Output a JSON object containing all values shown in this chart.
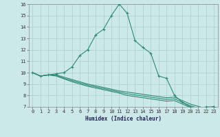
{
  "xlabel": "Humidex (Indice chaleur)",
  "x": [
    0,
    1,
    2,
    3,
    4,
    5,
    6,
    7,
    8,
    9,
    10,
    11,
    12,
    13,
    14,
    15,
    16,
    17,
    18,
    19,
    20,
    21,
    22,
    23
  ],
  "y_main": [
    10.0,
    9.7,
    9.8,
    9.9,
    10.0,
    10.5,
    11.5,
    12.0,
    13.3,
    13.8,
    15.0,
    16.0,
    15.2,
    12.8,
    12.2,
    11.7,
    9.7,
    9.5,
    8.0,
    7.4,
    7.0,
    6.8,
    7.0,
    7.0
  ],
  "y_low1": [
    10.0,
    9.7,
    9.8,
    9.8,
    9.6,
    9.4,
    9.2,
    9.0,
    8.85,
    8.7,
    8.55,
    8.4,
    8.3,
    8.2,
    8.1,
    8.0,
    7.9,
    7.8,
    7.85,
    7.55,
    7.25,
    7.05,
    6.85,
    7.05
  ],
  "y_low2": [
    10.0,
    9.7,
    9.8,
    9.75,
    9.5,
    9.3,
    9.1,
    8.9,
    8.75,
    8.6,
    8.45,
    8.3,
    8.15,
    8.05,
    7.95,
    7.85,
    7.75,
    7.65,
    7.7,
    7.4,
    7.1,
    6.9,
    6.7,
    6.9
  ],
  "y_low3": [
    10.0,
    9.7,
    9.8,
    9.7,
    9.45,
    9.2,
    9.0,
    8.8,
    8.65,
    8.5,
    8.35,
    8.2,
    8.0,
    7.9,
    7.8,
    7.7,
    7.6,
    7.5,
    7.55,
    7.25,
    6.95,
    6.75,
    6.55,
    6.75
  ],
  "line_color": "#2d8b72",
  "bg_color": "#cce8e8",
  "grid_color": "#aacece",
  "ylim": [
    7,
    16
  ],
  "xlim": [
    -0.5,
    23.5
  ],
  "yticks": [
    7,
    8,
    9,
    10,
    11,
    12,
    13,
    14,
    15,
    16
  ],
  "xticks": [
    0,
    1,
    2,
    3,
    4,
    5,
    6,
    7,
    8,
    9,
    10,
    11,
    12,
    13,
    14,
    15,
    16,
    17,
    18,
    19,
    20,
    21,
    22,
    23
  ]
}
